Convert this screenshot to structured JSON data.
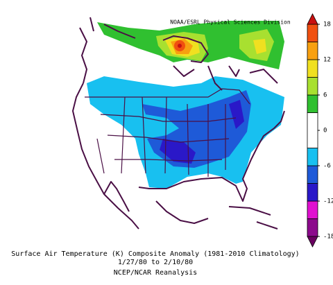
{
  "map": {
    "credit": "NOAA/ESRL Physical Sciences Division",
    "caption": [
      "Surface Air Temperature (K) Composite Anomaly (1981-2010 Climatology)",
      "1/27/80  to 2/10/80",
      "NCEP/NCAR Reanalysis"
    ],
    "colorbar": {
      "ticks": [
        18,
        12,
        6,
        0,
        -6,
        -12,
        -18
      ],
      "bounds": [
        -18,
        -15,
        -12,
        -9,
        -6,
        -3,
        3,
        6,
        9,
        12,
        15,
        18
      ],
      "colors": [
        "#8c0a8c",
        "#e010d0",
        "#2a18c8",
        "#1e5ad8",
        "#18c0f0",
        "#ffffff",
        "#30c030",
        "#a8e030",
        "#f0e020",
        "#f8a010",
        "#f05010"
      ],
      "under_color": "#6a0060",
      "over_color": "#c81010"
    }
  }
}
